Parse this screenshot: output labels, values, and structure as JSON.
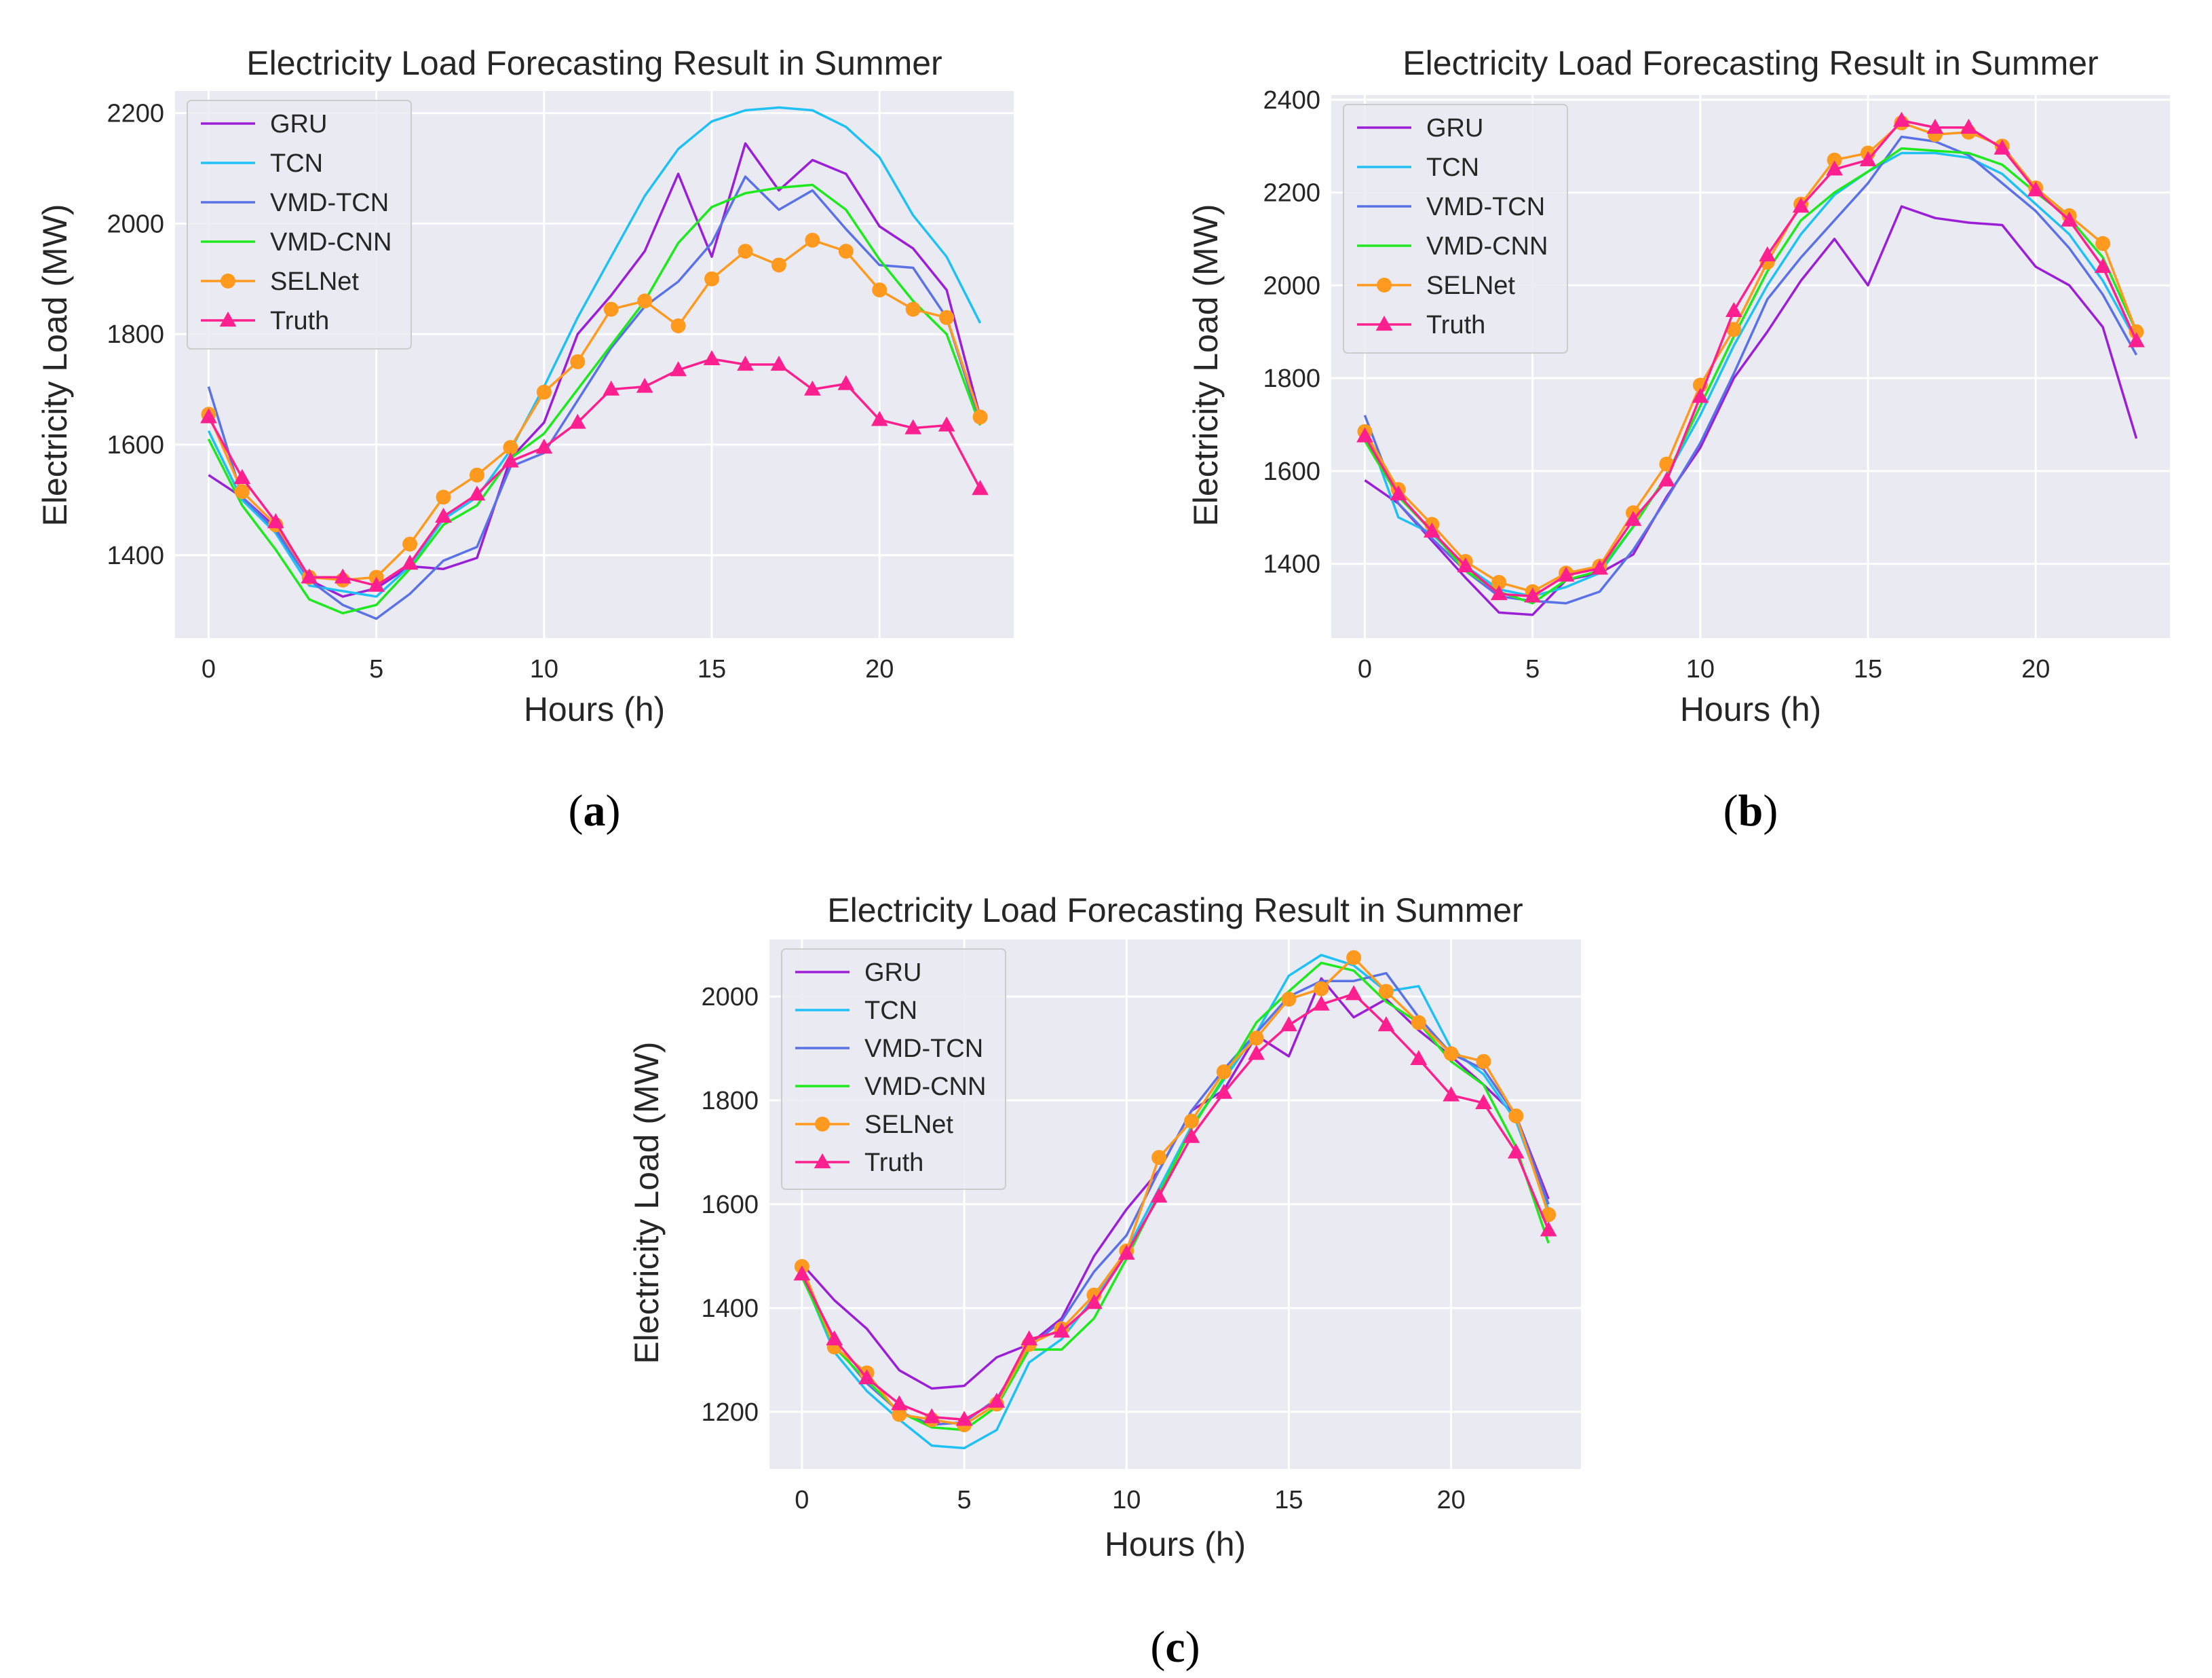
{
  "colors": {
    "GRU": "#9b1fd6",
    "TCN": "#1fc1f5",
    "VMD-TCN": "#5a72e6",
    "VMD-CNN": "#1ee81e",
    "SELNet": "#ff9a1f",
    "Truth": "#ff1f8e",
    "plot_bg": "#eaeaf2",
    "grid": "#ffffff"
  },
  "chart_data": [
    {
      "panel": "(a)",
      "panel_letter": "a",
      "type": "line",
      "title": "Electricity Load Forecasting Result in Summer",
      "xlabel": "Hours (h)",
      "ylabel": "Electricity Load (MW)",
      "xlim": [
        -1,
        24
      ],
      "ylim": [
        1250,
        2240
      ],
      "xticks": [
        0,
        5,
        10,
        15,
        20
      ],
      "yticks": [
        1400,
        1600,
        1800,
        2000,
        2200
      ],
      "grid": true,
      "legend_position": "top-left",
      "x": [
        0,
        1,
        2,
        3,
        4,
        5,
        6,
        7,
        8,
        9,
        10,
        11,
        12,
        13,
        14,
        15,
        16,
        17,
        18,
        19,
        20,
        21,
        22,
        23
      ],
      "series": [
        {
          "name": "GRU",
          "marker": "none",
          "values": [
            1545,
            1505,
            1450,
            1355,
            1325,
            1340,
            1380,
            1375,
            1395,
            1575,
            1640,
            1800,
            1870,
            1950,
            2090,
            1940,
            2145,
            2060,
            2115,
            2090,
            1995,
            1955,
            1880,
            1650
          ]
        },
        {
          "name": "TCN",
          "marker": "none",
          "values": [
            1625,
            1500,
            1440,
            1345,
            1335,
            1325,
            1380,
            1465,
            1505,
            1590,
            1705,
            1830,
            1940,
            2050,
            2135,
            2185,
            2205,
            2210,
            2205,
            2175,
            2120,
            2015,
            1940,
            1820
          ]
        },
        {
          "name": "VMD-TCN",
          "marker": "none",
          "values": [
            1705,
            1505,
            1445,
            1355,
            1310,
            1285,
            1330,
            1390,
            1415,
            1560,
            1585,
            1680,
            1775,
            1850,
            1895,
            1965,
            2085,
            2025,
            2060,
            1990,
            1925,
            1920,
            1830,
            1640
          ]
        },
        {
          "name": "VMD-CNN",
          "marker": "none",
          "values": [
            1610,
            1490,
            1410,
            1320,
            1295,
            1310,
            1375,
            1455,
            1490,
            1575,
            1620,
            1700,
            1780,
            1860,
            1965,
            2030,
            2055,
            2065,
            2070,
            2025,
            1935,
            1860,
            1800,
            1635
          ]
        },
        {
          "name": "SELNet",
          "marker": "circle",
          "values": [
            1655,
            1515,
            1455,
            1360,
            1355,
            1360,
            1420,
            1505,
            1545,
            1595,
            1695,
            1750,
            1845,
            1860,
            1815,
            1900,
            1950,
            1925,
            1970,
            1950,
            1880,
            1845,
            1830,
            1650
          ]
        },
        {
          "name": "Truth",
          "marker": "triangle",
          "values": [
            1650,
            1540,
            1460,
            1360,
            1360,
            1345,
            1385,
            1470,
            1510,
            1570,
            1595,
            1640,
            1700,
            1705,
            1735,
            1755,
            1745,
            1745,
            1700,
            1710,
            1645,
            1630,
            1635,
            1520
          ]
        }
      ]
    },
    {
      "panel": "(b)",
      "panel_letter": "b",
      "type": "line",
      "title": "Electricity Load Forecasting Result in Summer",
      "xlabel": "Hours (h)",
      "ylabel": "Electricity Load (MW)",
      "xlim": [
        -1,
        24
      ],
      "ylim": [
        1240,
        2410
      ],
      "xticks": [
        0,
        5,
        10,
        15,
        20
      ],
      "yticks": [
        1400,
        1600,
        1800,
        2000,
        2200,
        2400
      ],
      "grid": true,
      "legend_position": "top-left",
      "x": [
        0,
        1,
        2,
        3,
        4,
        5,
        6,
        7,
        8,
        9,
        10,
        11,
        12,
        13,
        14,
        15,
        16,
        17,
        18,
        19,
        20,
        21,
        22,
        23
      ],
      "series": [
        {
          "name": "GRU",
          "marker": "none",
          "values": [
            1580,
            1530,
            1450,
            1370,
            1295,
            1290,
            1365,
            1380,
            1420,
            1545,
            1650,
            1800,
            1900,
            2010,
            2100,
            2000,
            2170,
            2145,
            2135,
            2130,
            2040,
            2000,
            1910,
            1670
          ]
        },
        {
          "name": "TCN",
          "marker": "none",
          "values": [
            1700,
            1500,
            1465,
            1395,
            1345,
            1330,
            1350,
            1380,
            1480,
            1590,
            1720,
            1870,
            2000,
            2110,
            2195,
            2245,
            2285,
            2285,
            2275,
            2240,
            2175,
            2110,
            2010,
            1880
          ]
        },
        {
          "name": "VMD-TCN",
          "marker": "none",
          "values": [
            1720,
            1530,
            1455,
            1385,
            1330,
            1320,
            1315,
            1340,
            1430,
            1540,
            1660,
            1810,
            1970,
            2060,
            2140,
            2220,
            2320,
            2310,
            2280,
            2220,
            2160,
            2080,
            1980,
            1850
          ]
        },
        {
          "name": "VMD-CNN",
          "marker": "none",
          "values": [
            1665,
            1545,
            1470,
            1385,
            1340,
            1315,
            1365,
            1385,
            1480,
            1590,
            1740,
            1890,
            2030,
            2140,
            2200,
            2245,
            2295,
            2290,
            2285,
            2260,
            2200,
            2145,
            2060,
            1900
          ]
        },
        {
          "name": "SELNet",
          "marker": "circle",
          "values": [
            1685,
            1560,
            1485,
            1405,
            1360,
            1340,
            1380,
            1395,
            1510,
            1615,
            1785,
            1905,
            2050,
            2175,
            2270,
            2285,
            2350,
            2325,
            2330,
            2300,
            2210,
            2150,
            2090,
            1900
          ]
        },
        {
          "name": "Truth",
          "marker": "triangle",
          "values": [
            1675,
            1550,
            1470,
            1395,
            1335,
            1330,
            1375,
            1390,
            1495,
            1580,
            1760,
            1945,
            2065,
            2170,
            2250,
            2270,
            2355,
            2340,
            2340,
            2295,
            2205,
            2140,
            2040,
            1880
          ]
        }
      ]
    },
    {
      "panel": "(c)",
      "panel_letter": "c",
      "type": "line",
      "title": "Electricity Load Forecasting Result in Summer",
      "xlabel": "Hours (h)",
      "ylabel": "Electricity Load (MW)",
      "xlim": [
        -1,
        24
      ],
      "ylim": [
        1090,
        2110
      ],
      "xticks": [
        0,
        5,
        10,
        15,
        20
      ],
      "yticks": [
        1200,
        1400,
        1600,
        1800,
        2000
      ],
      "grid": true,
      "legend_position": "top-left",
      "x": [
        0,
        1,
        2,
        3,
        4,
        5,
        6,
        7,
        8,
        9,
        10,
        11,
        12,
        13,
        14,
        15,
        16,
        17,
        18,
        19,
        20,
        21,
        22,
        23
      ],
      "series": [
        {
          "name": "GRU",
          "marker": "none",
          "values": [
            1485,
            1415,
            1360,
            1280,
            1245,
            1250,
            1305,
            1330,
            1380,
            1500,
            1590,
            1665,
            1780,
            1820,
            1925,
            1885,
            2035,
            1960,
            1995,
            1935,
            1885,
            1830,
            1770,
            1610
          ]
        },
        {
          "name": "TCN",
          "marker": "none",
          "values": [
            1465,
            1315,
            1240,
            1185,
            1135,
            1130,
            1165,
            1295,
            1340,
            1420,
            1510,
            1630,
            1750,
            1840,
            1930,
            2040,
            2080,
            2060,
            2010,
            2020,
            1900,
            1850,
            1760,
            1590
          ]
        },
        {
          "name": "VMD-TCN",
          "marker": "none",
          "values": [
            1470,
            1330,
            1255,
            1200,
            1175,
            1180,
            1225,
            1325,
            1375,
            1470,
            1540,
            1665,
            1780,
            1860,
            1930,
            2000,
            2030,
            2030,
            2045,
            1960,
            1890,
            1860,
            1770,
            1600
          ]
        },
        {
          "name": "VMD-CNN",
          "marker": "none",
          "values": [
            1460,
            1325,
            1260,
            1200,
            1170,
            1165,
            1210,
            1320,
            1320,
            1380,
            1495,
            1620,
            1745,
            1845,
            1950,
            2010,
            2065,
            2050,
            1990,
            1950,
            1875,
            1830,
            1710,
            1525
          ]
        },
        {
          "name": "SELNet",
          "marker": "circle",
          "values": [
            1480,
            1325,
            1275,
            1195,
            1185,
            1175,
            1215,
            1330,
            1360,
            1425,
            1510,
            1690,
            1760,
            1855,
            1920,
            1995,
            2015,
            2075,
            2010,
            1950,
            1890,
            1875,
            1770,
            1580
          ]
        },
        {
          "name": "Truth",
          "marker": "triangle",
          "values": [
            1465,
            1340,
            1265,
            1215,
            1190,
            1185,
            1220,
            1340,
            1355,
            1410,
            1505,
            1615,
            1730,
            1815,
            1890,
            1945,
            1985,
            2005,
            1945,
            1880,
            1810,
            1795,
            1700,
            1550
          ]
        }
      ]
    }
  ]
}
